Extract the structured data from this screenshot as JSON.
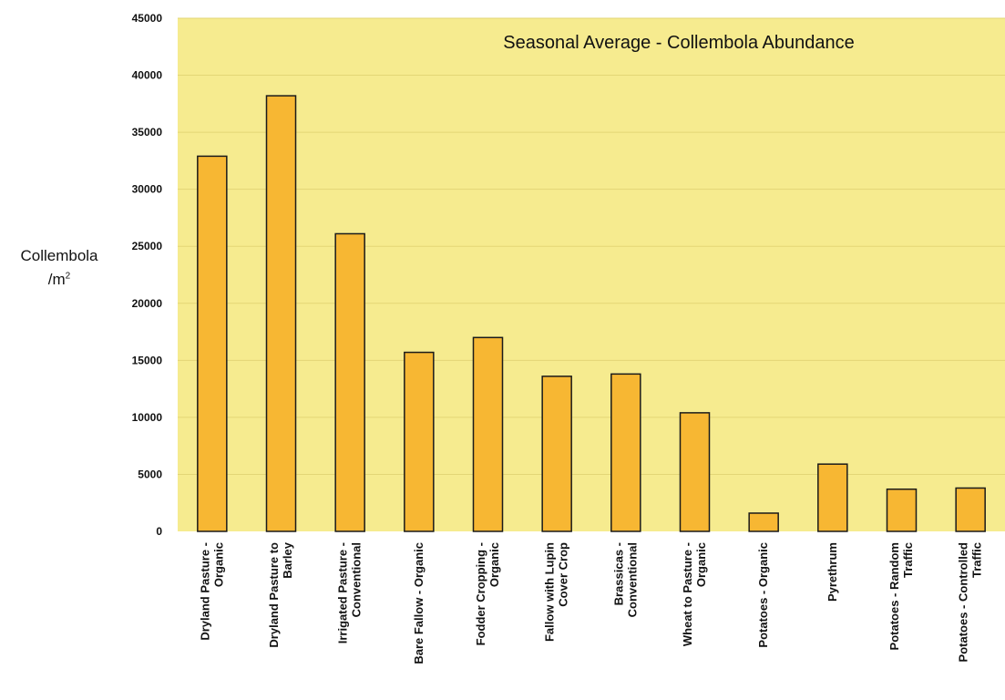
{
  "chart_data": {
    "type": "bar",
    "title": "Seasonal Average - Collembola Abundance",
    "ylabel": "Collembola",
    "ylabel_line2": "/m",
    "ylabel_sup": "2",
    "ylim": [
      0,
      45000
    ],
    "yticks": [
      "0",
      "5000",
      "10000",
      "15000",
      "20000",
      "25000",
      "30000",
      "35000",
      "40000",
      "45000"
    ],
    "grid": true,
    "categories": [
      [
        "Dryland Pasture -",
        "Organic"
      ],
      [
        "Dryland Pasture to",
        "Barley"
      ],
      [
        "Irrigated Pasture -",
        "Conventional"
      ],
      [
        "Bare Fallow - Organic"
      ],
      [
        "Fodder Cropping -",
        "Organic"
      ],
      [
        "Fallow with Lupin",
        "Cover Crop"
      ],
      [
        "Brassicas -",
        "Conventional"
      ],
      [
        "Wheat to Pasture -",
        "Organic"
      ],
      [
        "Potatoes - Organic"
      ],
      [
        "Pyrethrum"
      ],
      [
        "Potatoes - Random",
        "Traffic"
      ],
      [
        "Potatoes - Controlled",
        "Traffic"
      ]
    ],
    "values": [
      32900,
      38200,
      26100,
      15700,
      17000,
      13600,
      13800,
      10400,
      1600,
      5900,
      3700,
      3800
    ],
    "colors": {
      "bar": "#f7b733",
      "bar_stroke": "#1a1a1a",
      "plot_bg": "#f6eb8f",
      "grid": "#e3d676"
    }
  }
}
